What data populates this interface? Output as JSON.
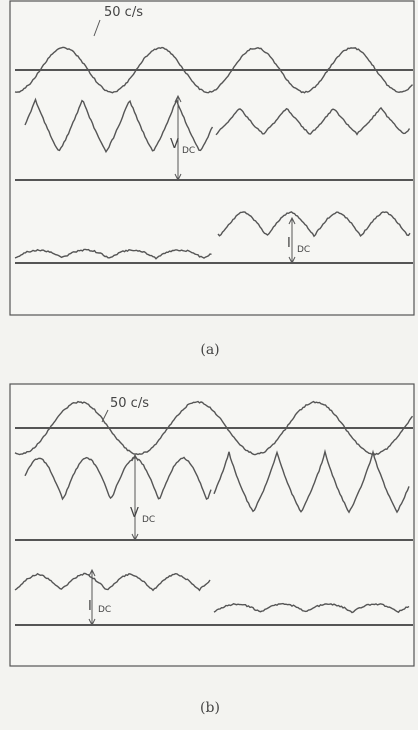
{
  "panels": [
    {
      "caption": "(a)",
      "frequency_label": "50 c/s",
      "voltage_label": "V",
      "voltage_subscript": "DC",
      "current_label": "I",
      "current_subscript": "DC"
    },
    {
      "caption": "(b)",
      "frequency_label": "50 c/s",
      "voltage_label": "V",
      "voltage_subscript": "DC",
      "current_label": "I",
      "current_subscript": "DC"
    }
  ]
}
